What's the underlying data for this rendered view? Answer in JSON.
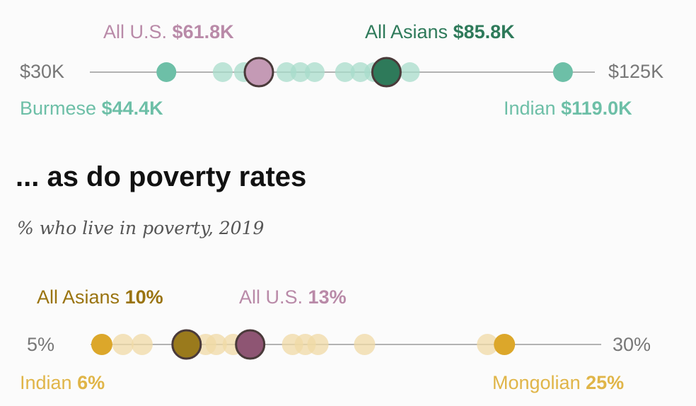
{
  "heading": "... as do poverty rates",
  "subheading": "% who live in poverty, 2019",
  "chart_data": [
    {
      "type": "scatter",
      "description_axis": "income",
      "xlim": [
        30,
        125
      ],
      "tick_labels": [
        "$30K",
        "$125K"
      ],
      "highlights": [
        {
          "name": "All U.S.",
          "value": 61.8,
          "label": "$61.8K",
          "color": "#b98aa8",
          "fill": "#c49ab5"
        },
        {
          "name": "All Asians",
          "value": 85.8,
          "label": "$85.8K",
          "color": "#2e7a5a",
          "fill": "#2e7a5a"
        },
        {
          "name": "Burmese",
          "value": 44.4,
          "label": "$44.4K",
          "color": "#6dbfa7",
          "fill": "#6dbfa7"
        },
        {
          "name": "Indian",
          "value": 119.0,
          "label": "$119.0K",
          "color": "#6dbfa7",
          "fill": "#6dbfa7"
        }
      ],
      "other_values": [
        55.0,
        59.0,
        67.0,
        69.6,
        72.3,
        78.0,
        80.9,
        83.5,
        90.2
      ],
      "other_color": "#a8dccb"
    },
    {
      "type": "scatter",
      "xlim": [
        5,
        30
      ],
      "tick_labels": [
        "5%",
        "30%"
      ],
      "highlights": [
        {
          "name": "All Asians",
          "value": 10,
          "label": "10%",
          "color": "#9a7410",
          "fill": "#9a7a1c"
        },
        {
          "name": "All U.S.",
          "value": 13,
          "label": "13%",
          "color": "#b98aa8",
          "fill": "#8e5573"
        },
        {
          "name": "Indian",
          "value": 6,
          "label": "6%",
          "color": "#e0b548",
          "fill": "#dca72a"
        },
        {
          "name": "Mongolian",
          "value": 25,
          "label": "25%",
          "color": "#e0b548",
          "fill": "#dca72a"
        }
      ],
      "other_values": [
        7.0,
        7.9,
        10.9,
        11.4,
        12.2,
        15.0,
        15.6,
        16.2,
        18.4,
        24.2
      ],
      "other_color": "#f0d9a6"
    }
  ]
}
